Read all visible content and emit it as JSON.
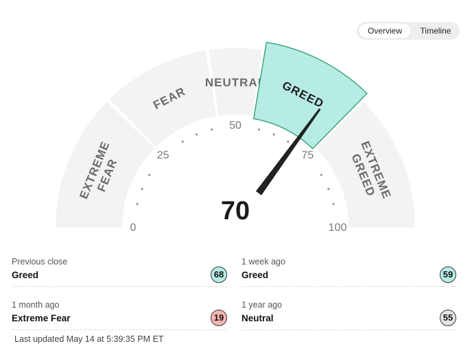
{
  "toggle": {
    "overview_label": "Overview",
    "timeline_label": "Timeline",
    "active": "overview"
  },
  "gauge": {
    "value": 70,
    "value_text": "70",
    "active_segment": "GREED",
    "segments": [
      {
        "lines": [
          "EXTREME",
          "FEAR"
        ],
        "from": 0,
        "to": 25
      },
      {
        "lines": [
          "FEAR"
        ],
        "from": 25,
        "to": 45
      },
      {
        "lines": [
          "NEUTRAL"
        ],
        "from": 45,
        "to": 55
      },
      {
        "lines": [
          "GREED"
        ],
        "from": 55,
        "to": 75
      },
      {
        "lines": [
          "EXTREME",
          "GREED"
        ],
        "from": 75,
        "to": 100
      }
    ],
    "ticks": [
      "0",
      "25",
      "50",
      "75",
      "100"
    ],
    "colors": {
      "inactive_fill": "#f3f3f3",
      "active_fill": "#b7ece4",
      "active_stroke": "#3fa57e",
      "needle": "#222222",
      "dots": "#8a8a8a"
    }
  },
  "history": [
    {
      "label": "Previous close",
      "rating": "Greed",
      "value": "68",
      "color": "#b7ece4"
    },
    {
      "label": "1 week ago",
      "rating": "Greed",
      "value": "59",
      "color": "#b7ece4"
    },
    {
      "label": "1 month ago",
      "rating": "Extreme Fear",
      "value": "19",
      "color": "#f8b7b2"
    },
    {
      "label": "1 year ago",
      "rating": "Neutral",
      "value": "55",
      "color": "#e5e5e5"
    }
  ],
  "last_updated": "Last updated May 14 at 5:39:35 PM ET"
}
